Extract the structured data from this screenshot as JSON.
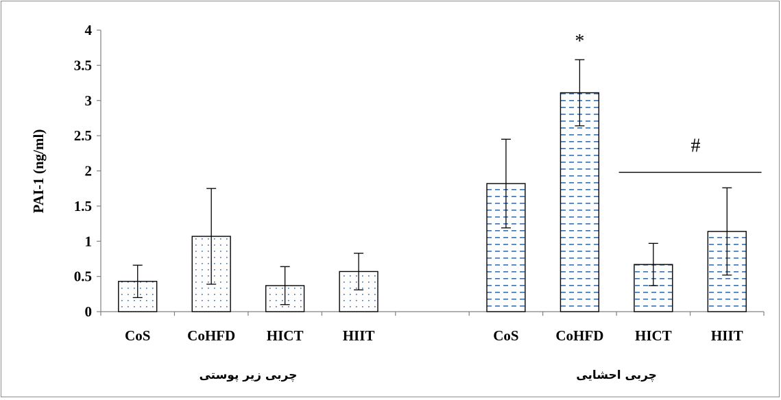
{
  "chart_data": {
    "type": "bar",
    "title": "",
    "ylabel": "PAI-1 (ng/ml)",
    "xlabel": "",
    "ylim": [
      0,
      4
    ],
    "yticks": [
      "0",
      "0.5",
      "1",
      "1.5",
      "2",
      "2.5",
      "3",
      "3.5",
      "4"
    ],
    "grid": false,
    "legend": "none",
    "groups": [
      {
        "label": "چربی زیر پوستی",
        "pattern": "dots",
        "categories": [
          "CoS",
          "CoHFD",
          "HICT",
          "HIIT"
        ],
        "values": [
          0.43,
          1.07,
          0.37,
          0.57
        ],
        "errors": [
          0.23,
          0.68,
          0.27,
          0.26
        ]
      },
      {
        "label": "چربی احشایی",
        "pattern": "dashes",
        "categories": [
          "CoS",
          "CoHFD",
          "HICT",
          "HIIT"
        ],
        "values": [
          1.82,
          3.11,
          0.67,
          1.14
        ],
        "errors": [
          0.63,
          0.47,
          0.3,
          0.62
        ]
      }
    ],
    "annotations": [
      {
        "text": "*",
        "group": 1,
        "index": 1
      },
      {
        "text": "#",
        "group": 1,
        "span": [
          2,
          3
        ],
        "line_y": 1.98
      }
    ],
    "colors": {
      "axis": "#808080",
      "bar_stroke": "#000000",
      "dot": "#3a6ea5",
      "dash": "#3a6ea5",
      "error": "#000000"
    }
  }
}
